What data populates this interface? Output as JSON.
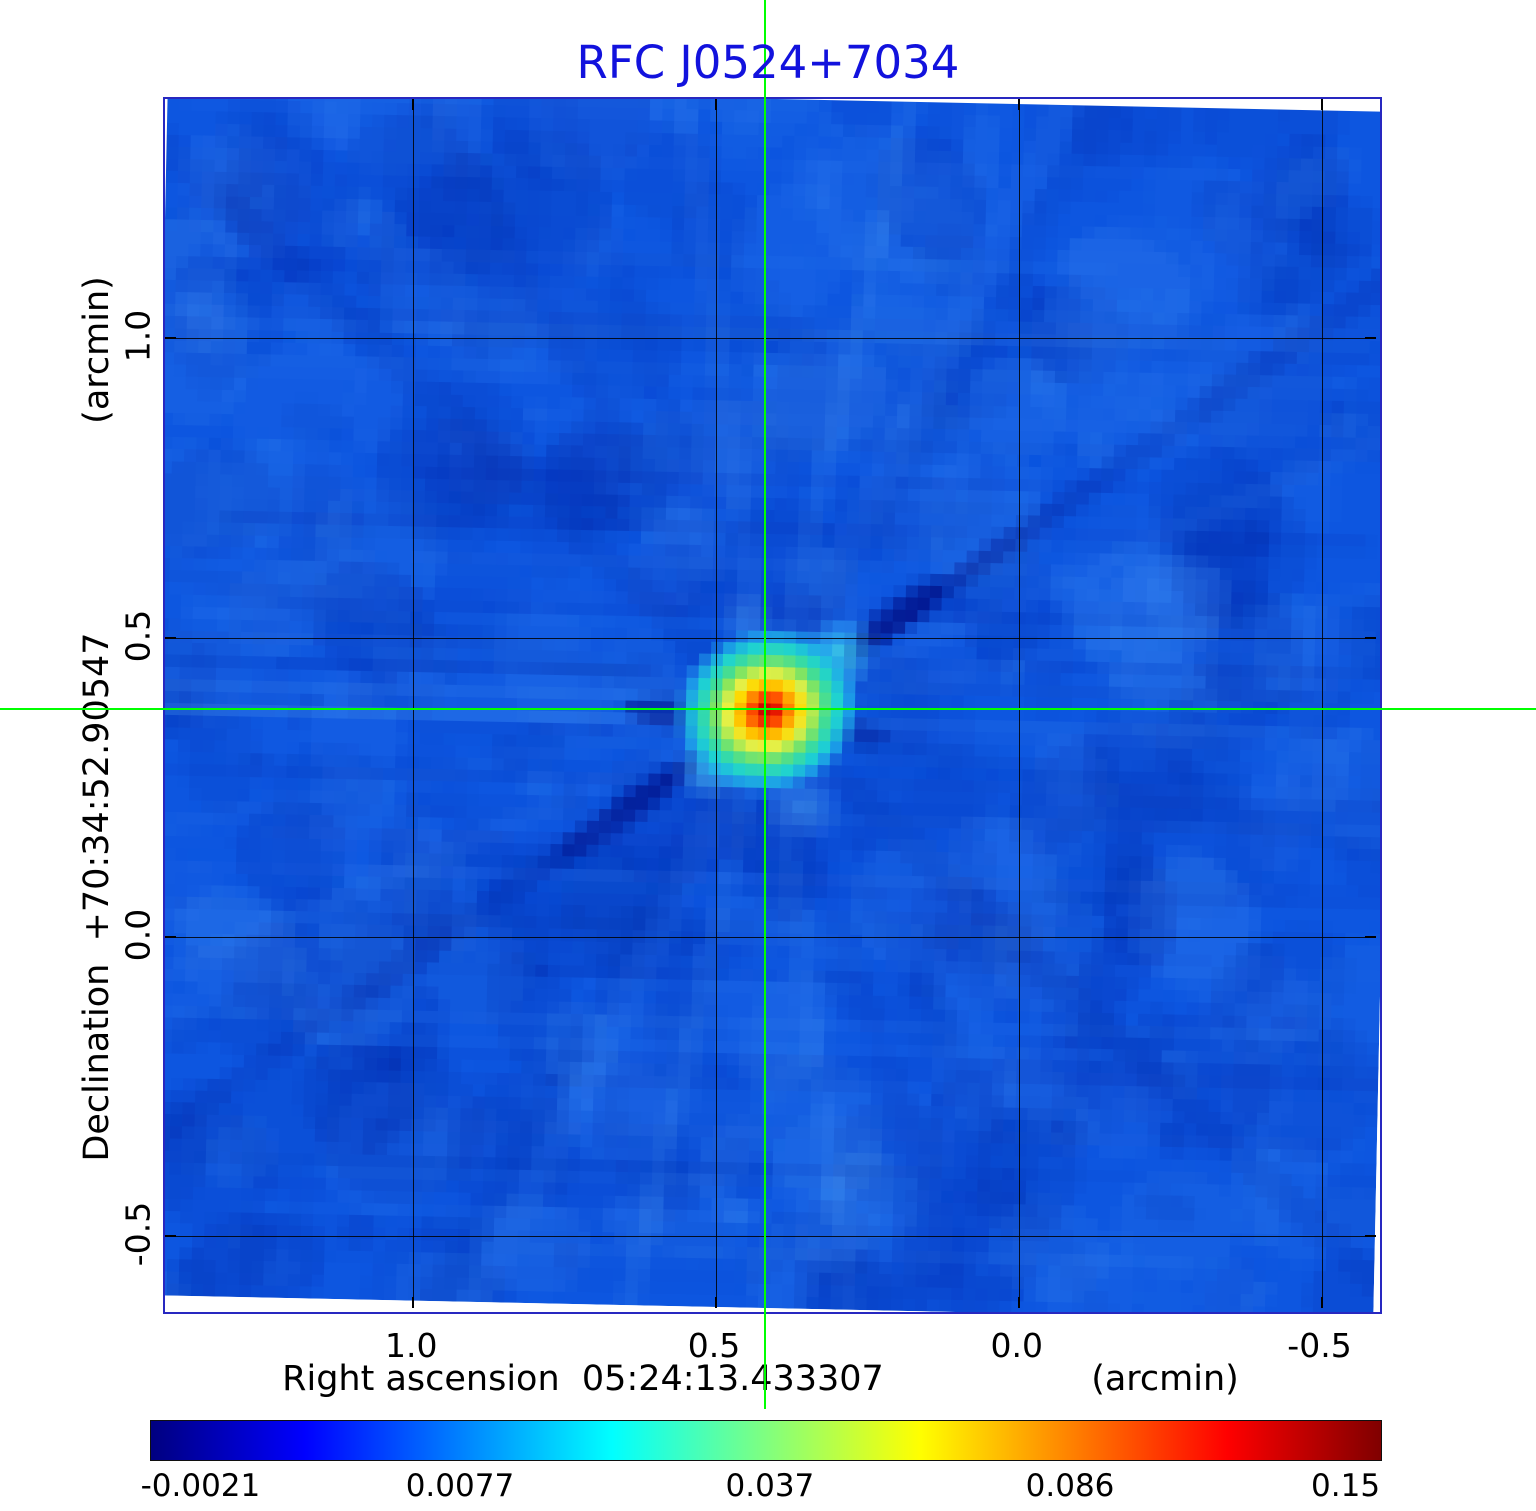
{
  "chart_data": {
    "type": "heatmap",
    "title": "RFC J0524+7034",
    "x_axis": {
      "label": "Right ascension  05:24:13.433307",
      "unit": "(arcmin)",
      "range_arcmin": [
        1.41,
        -0.59
      ],
      "ticks": [
        {
          "label": "1.0",
          "value": 1.0
        },
        {
          "label": "0.5",
          "value": 0.5
        },
        {
          "label": "0.0",
          "value": 0.0
        },
        {
          "label": "-0.5",
          "value": -0.5
        }
      ]
    },
    "y_axis": {
      "label": "Declination  +70:34:52.90547",
      "unit": "(arcmin)",
      "range_arcmin": [
        1.4,
        -0.62
      ],
      "ticks": [
        {
          "label": "1.0",
          "value": 1.0
        },
        {
          "label": "0.5",
          "value": 0.5
        },
        {
          "label": "0.0",
          "value": 0.0
        },
        {
          "label": "-0.5",
          "value": -0.5
        }
      ]
    },
    "crosshair": {
      "x_arcmin": 0.415,
      "y_arcmin": 0.378,
      "color": "#00ff00"
    },
    "source": {
      "x_arcmin": 0.415,
      "y_arcmin": 0.378,
      "peak_value": 0.15,
      "morphology": "compact bright peak with a cyan companion blob to the north-east, a fainter blob to the south-west, and dark sidelobe rays along a NE-SW diagonal"
    },
    "colorbar": {
      "colormap": "jet",
      "value_min": -0.0021,
      "value_max": 0.15,
      "ticks": [
        {
          "label": "-0.0021",
          "position": 0.041
        },
        {
          "label": "0.0077",
          "position": 0.252
        },
        {
          "label": "0.037",
          "position": 0.504
        },
        {
          "label": "0.086",
          "position": 0.748
        },
        {
          "label": "0.15",
          "position": 0.972
        }
      ]
    },
    "grid": true,
    "colors": {
      "title": "#1212dd",
      "frame_border": "#2828c0",
      "sky_background": "#0d56e0",
      "crosshair": "#00ff00",
      "grid": "#000000"
    }
  }
}
